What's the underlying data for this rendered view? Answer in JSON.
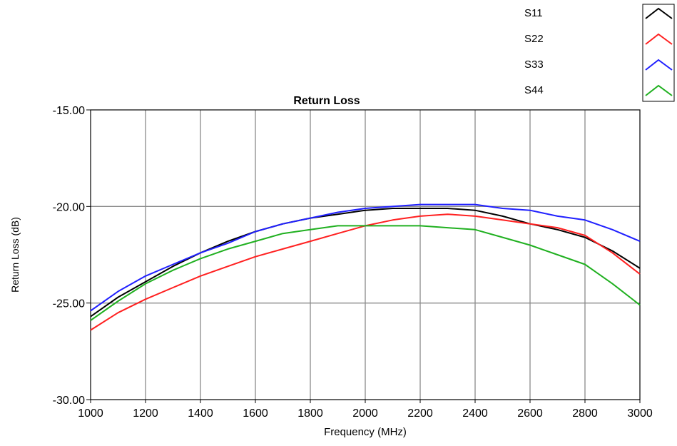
{
  "chart_data": {
    "type": "line",
    "title": "Return Loss",
    "xlabel": "Frequency (MHz)",
    "ylabel": "Return Loss (dB)",
    "xlim": [
      1000,
      3000
    ],
    "ylim": [
      -30,
      -15
    ],
    "x_ticks": [
      1000,
      1200,
      1400,
      1600,
      1800,
      2000,
      2200,
      2400,
      2600,
      2800,
      3000
    ],
    "x_tick_labels": [
      "1000",
      "1200",
      "1400",
      "1600",
      "1800",
      "2000",
      "2200",
      "2400",
      "2600",
      "2800",
      "3000"
    ],
    "y_ticks": [
      -15,
      -20,
      -25,
      -30
    ],
    "y_tick_labels": [
      "-15.00",
      "-20.00",
      "-25.00",
      "-30.00"
    ],
    "grid": true,
    "legend_position": "top-right, above plot",
    "x": [
      1000,
      1100,
      1200,
      1300,
      1400,
      1500,
      1600,
      1700,
      1800,
      1900,
      2000,
      2100,
      2200,
      2300,
      2400,
      2500,
      2600,
      2700,
      2800,
      2900,
      3000
    ],
    "series": [
      {
        "name": "S11",
        "color": "#000000",
        "values": [
          -25.7,
          -24.7,
          -23.9,
          -23.1,
          -22.4,
          -21.8,
          -21.3,
          -20.9,
          -20.6,
          -20.4,
          -20.2,
          -20.1,
          -20.1,
          -20.1,
          -20.2,
          -20.5,
          -20.9,
          -21.2,
          -21.6,
          -22.3,
          -23.2
        ]
      },
      {
        "name": "S22",
        "color": "#ff2020",
        "values": [
          -26.4,
          -25.5,
          -24.8,
          -24.2,
          -23.6,
          -23.1,
          -22.6,
          -22.2,
          -21.8,
          -21.4,
          -21.0,
          -20.7,
          -20.5,
          -20.4,
          -20.5,
          -20.7,
          -20.9,
          -21.1,
          -21.5,
          -22.4,
          -23.5
        ]
      },
      {
        "name": "S33",
        "color": "#2020ff",
        "values": [
          -25.4,
          -24.4,
          -23.6,
          -23.0,
          -22.4,
          -21.9,
          -21.3,
          -20.9,
          -20.6,
          -20.3,
          -20.1,
          -20.0,
          -19.9,
          -19.9,
          -19.9,
          -20.1,
          -20.2,
          -20.5,
          -20.7,
          -21.2,
          -21.8
        ]
      },
      {
        "name": "S44",
        "color": "#20b020",
        "values": [
          -25.9,
          -24.9,
          -24.0,
          -23.3,
          -22.7,
          -22.2,
          -21.8,
          -21.4,
          -21.2,
          -21.0,
          -21.0,
          -21.0,
          -21.0,
          -21.1,
          -21.2,
          -21.6,
          -22.0,
          -22.5,
          -23.0,
          -24.0,
          -25.1
        ]
      }
    ]
  }
}
